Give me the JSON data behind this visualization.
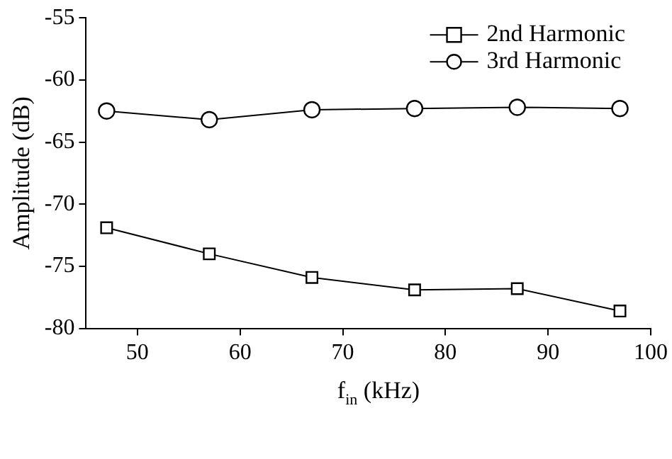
{
  "chart_data": {
    "type": "line",
    "xlabel": "f$_{in}$ (kHz)",
    "ylabel": "Amplitude (dB)",
    "x": [
      47,
      57,
      67,
      77,
      87,
      97
    ],
    "series": [
      {
        "name": "2nd Harmonic",
        "color": "#000000",
        "marker": "square",
        "values": [
          -71.9,
          -74.0,
          -75.9,
          -76.9,
          -76.8,
          -78.6
        ]
      },
      {
        "name": "3rd Harmonic",
        "color": "#000000",
        "marker": "circle",
        "values": [
          -62.5,
          -63.2,
          -62.4,
          -62.3,
          -62.2,
          -62.3
        ]
      }
    ],
    "xlim": [
      45,
      100
    ],
    "xticks": [
      50,
      60,
      70,
      80,
      90,
      100
    ],
    "ylim": [
      -80,
      -55
    ],
    "yticks": [
      -80,
      -75,
      -70,
      -65,
      -60,
      -55
    ],
    "grid": false,
    "legend": "top right",
    "line_style": "solid"
  }
}
